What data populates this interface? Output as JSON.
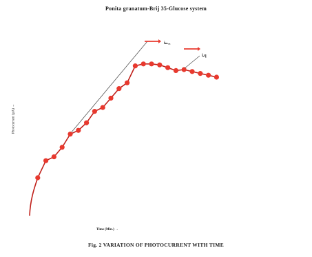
{
  "chart_data": {
    "type": "line",
    "title": "Ponita granatum-Brij 35-Glucose system",
    "xlabel": "Time (Min.) →",
    "ylabel": "Photocurrent (µA) →",
    "caption": "Fig. 2 VARIATION OF PHOTOCURRENT WITH TIME",
    "grid": false,
    "series_color": "#e8392e",
    "line_color": "#c0201a",
    "annotations": [
      {
        "label": "iₘₐₓ"
      },
      {
        "label": "iₑq"
      }
    ],
    "x": [
      0,
      1,
      2,
      3,
      4,
      5,
      6,
      7,
      8,
      9,
      10,
      11,
      12,
      13,
      14,
      15,
      16,
      17,
      18,
      19,
      20,
      21,
      22,
      23
    ],
    "y": [
      0.0,
      23.5,
      34.1,
      36.5,
      42.4,
      50.6,
      52.9,
      57.6,
      64.7,
      67.1,
      72.9,
      78.8,
      82.4,
      92.9,
      94.1,
      94.1,
      93.5,
      91.8,
      90.0,
      90.6,
      89.4,
      88.2,
      87.1,
      85.9
    ],
    "draw_from": 1
  }
}
